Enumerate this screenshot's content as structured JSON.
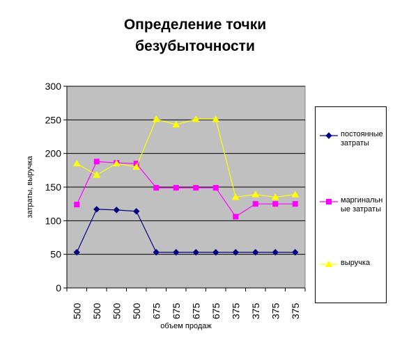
{
  "chart_data": {
    "type": "line",
    "title": "Определение точки безубыточности",
    "title_lines": [
      "Определение точки",
      "безубыточности"
    ],
    "xlabel": "объем продаж",
    "ylabel": "затраты, выручка",
    "categories": [
      "500",
      "500",
      "500",
      "500",
      "675",
      "675",
      "675",
      "675",
      "375",
      "375",
      "375",
      "375"
    ],
    "ylim": [
      0,
      300
    ],
    "yticks": [
      "0",
      "50",
      "100",
      "150",
      "200",
      "250",
      "300"
    ],
    "grid": true,
    "legend_position": "right",
    "plot_background": "#c0c0c0",
    "series": [
      {
        "name": "постоянные затраты",
        "label_lines": [
          "постоянные",
          "затраты"
        ],
        "color": "#000080",
        "marker": "diamond",
        "values": [
          53,
          117,
          116,
          114,
          53,
          53,
          53,
          53,
          53,
          53,
          53,
          53
        ]
      },
      {
        "name": "маргинальные затраты",
        "label_lines": [
          "маргинальн",
          "ые затраты"
        ],
        "color": "#ff00ff",
        "marker": "square",
        "values": [
          124,
          188,
          186,
          185,
          149,
          149,
          149,
          149,
          106,
          125,
          125,
          125
        ]
      },
      {
        "name": "выручка",
        "label_lines": [
          "выручка"
        ],
        "color": "#ffff00",
        "marker": "triangle",
        "values": [
          185,
          168,
          185,
          180,
          251,
          243,
          251,
          251,
          135,
          139,
          135,
          139
        ]
      }
    ]
  }
}
